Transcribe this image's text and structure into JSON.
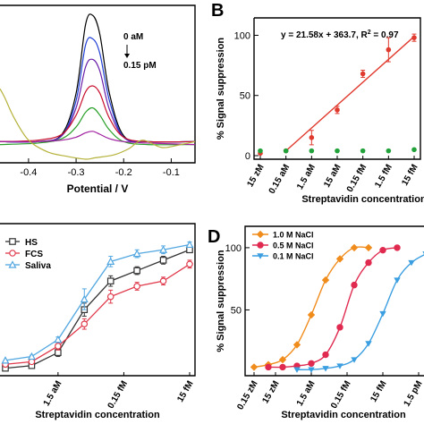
{
  "chart_data": [
    {
      "panel": "",
      "type": "line",
      "xlabel": "Potential / V",
      "ylabel": "",
      "xlim": [
        -0.46,
        -0.05
      ],
      "ylim": [
        0,
        1
      ],
      "x_ticks": [
        -0.4,
        -0.3,
        -0.2,
        -0.1
      ],
      "x_tick_labels": [
        "-0.4",
        "-0.3",
        "-0.2",
        "-0.1"
      ],
      "annotations": [
        "0 aM",
        "0.15 pM"
      ],
      "series": [
        {
          "color": "#000000",
          "x": [
            -0.46,
            -0.38,
            -0.33,
            -0.3,
            -0.28,
            -0.265,
            -0.25,
            -0.23,
            -0.2,
            -0.15,
            -0.05
          ],
          "values": [
            0.12,
            0.12,
            0.17,
            0.45,
            0.92,
            0.98,
            0.85,
            0.45,
            0.16,
            0.12,
            0.12
          ]
        },
        {
          "color": "#1f3fd6",
          "x": [
            -0.46,
            -0.38,
            -0.33,
            -0.3,
            -0.28,
            -0.265,
            -0.25,
            -0.23,
            -0.2,
            -0.15,
            -0.05
          ],
          "values": [
            0.12,
            0.12,
            0.16,
            0.4,
            0.78,
            0.82,
            0.72,
            0.4,
            0.15,
            0.12,
            0.12
          ]
        },
        {
          "color": "#6a1fa8",
          "x": [
            -0.46,
            -0.38,
            -0.33,
            -0.3,
            -0.28,
            -0.265,
            -0.25,
            -0.23,
            -0.2,
            -0.15,
            -0.05
          ],
          "values": [
            0.12,
            0.12,
            0.16,
            0.35,
            0.63,
            0.68,
            0.6,
            0.34,
            0.15,
            0.12,
            0.12
          ]
        },
        {
          "color": "#c8102e",
          "x": [
            -0.46,
            -0.38,
            -0.33,
            -0.3,
            -0.28,
            -0.265,
            -0.25,
            -0.23,
            -0.2,
            -0.15,
            -0.05
          ],
          "values": [
            0.12,
            0.13,
            0.17,
            0.3,
            0.46,
            0.5,
            0.45,
            0.28,
            0.15,
            0.12,
            0.12
          ]
        },
        {
          "color": "#2aa02a",
          "x": [
            -0.46,
            -0.38,
            -0.33,
            -0.3,
            -0.28,
            -0.265,
            -0.25,
            -0.23,
            -0.2,
            -0.15,
            -0.05
          ],
          "values": [
            0.1,
            0.11,
            0.14,
            0.22,
            0.32,
            0.35,
            0.3,
            0.2,
            0.12,
            0.1,
            0.1
          ]
        },
        {
          "color": "#a020a0",
          "x": [
            -0.46,
            -0.38,
            -0.33,
            -0.3,
            -0.28,
            -0.265,
            -0.25,
            -0.23,
            -0.2,
            -0.15,
            -0.05
          ],
          "values": [
            0.12,
            0.12,
            0.13,
            0.15,
            0.18,
            0.19,
            0.17,
            0.14,
            0.12,
            0.11,
            0.1
          ]
        },
        {
          "color": "#b5b23a",
          "x": [
            -0.46,
            -0.45,
            -0.43,
            -0.4,
            -0.36,
            -0.32,
            -0.28,
            -0.26,
            -0.22,
            -0.19,
            -0.16,
            -0.12,
            -0.08,
            -0.05
          ],
          "values": [
            0.48,
            0.42,
            0.28,
            0.13,
            0.05,
            0.02,
            0.0,
            0.01,
            0.03,
            0.07,
            0.13,
            0.08,
            0.1,
            0.12
          ]
        }
      ]
    },
    {
      "panel": "B",
      "type": "scatter",
      "xlabel": "Streptavidin concentration",
      "ylabel": "% Signal suppression",
      "categories": [
        "15 zM",
        "0.15 aM",
        "1.5 aM",
        "15 aM",
        "0.15 fM",
        "1.5 fM",
        "15 fM"
      ],
      "ylim": [
        0,
        110
      ],
      "y_ticks": [
        0,
        50,
        100
      ],
      "equation": "y = 21.58x + 363.7, R",
      "equation_sup": "2",
      "equation_tail": " = 0.97",
      "series": [
        {
          "color": "#e03a2e",
          "values": [
            2,
            4,
            15,
            38,
            68,
            88,
            98
          ],
          "errors": [
            0,
            0,
            6,
            3,
            3,
            10,
            3
          ]
        },
        {
          "color": "#22a23a",
          "values": [
            4,
            4,
            4,
            4,
            4,
            4,
            5
          ],
          "errors": [
            0,
            0,
            0,
            0,
            0,
            0,
            0
          ]
        }
      ],
      "fit_line": {
        "from_index": 1,
        "to_index": 6,
        "start": 4,
        "end": 99
      }
    },
    {
      "panel": "",
      "type": "line",
      "xlabel": "Streptavidin concentration",
      "ylabel": "",
      "categories": [
        "1.5 aM",
        "0.15 fM",
        "15 fM"
      ],
      "x": [
        0,
        1,
        2,
        3,
        4,
        5,
        6,
        7
      ],
      "ylim": [
        0,
        110
      ],
      "series": [
        {
          "name": "HS",
          "color": "#333333",
          "marker": "square",
          "values": [
            3,
            5,
            15,
            48,
            70,
            78,
            86,
            94
          ],
          "errors": [
            0,
            1,
            3,
            5,
            4,
            3,
            3,
            2
          ]
        },
        {
          "name": "FCS",
          "color": "#e03a4c",
          "marker": "circle",
          "values": [
            6,
            8,
            20,
            37,
            58,
            66,
            70,
            83
          ],
          "errors": [
            0,
            1,
            3,
            4,
            5,
            3,
            3,
            3
          ]
        },
        {
          "name": "Saliva",
          "color": "#52a7e0",
          "marker": "triangle",
          "values": [
            9,
            12,
            25,
            56,
            85,
            91,
            94,
            98
          ],
          "errors": [
            0,
            1,
            2,
            8,
            4,
            3,
            3,
            2
          ]
        }
      ]
    },
    {
      "panel": "D",
      "type": "line",
      "xlabel": "Streptavidin concentration",
      "ylabel": "% Signal suppression",
      "categories": [
        "0.15 zM",
        "15 zM",
        "1.5 aM",
        "0.15 fM",
        "15 fM",
        "1.5 pM"
      ],
      "x": [
        0,
        1,
        2,
        3,
        4,
        5,
        6,
        7,
        8,
        9,
        10,
        11,
        12
      ],
      "ylim": [
        0,
        110
      ],
      "y_ticks": [
        50,
        100
      ],
      "series": [
        {
          "name": "1.0 M NaCl",
          "color": "#f08c1c",
          "marker": "diamond",
          "values": [
            4,
            6,
            10,
            22,
            46,
            74,
            91,
            100,
            100,
            null,
            null,
            null,
            null
          ]
        },
        {
          "name": "0.5 M NaCl",
          "color": "#e02a50",
          "marker": "circle",
          "values": [
            null,
            4,
            4,
            5,
            7,
            14,
            36,
            70,
            88,
            98,
            100,
            null,
            null
          ]
        },
        {
          "name": "0.1 M NaCl",
          "color": "#3a9ee0",
          "marker": "triangle",
          "values": [
            null,
            null,
            null,
            2,
            2,
            3,
            5,
            10,
            23,
            47,
            74,
            88,
            95
          ]
        }
      ]
    }
  ]
}
